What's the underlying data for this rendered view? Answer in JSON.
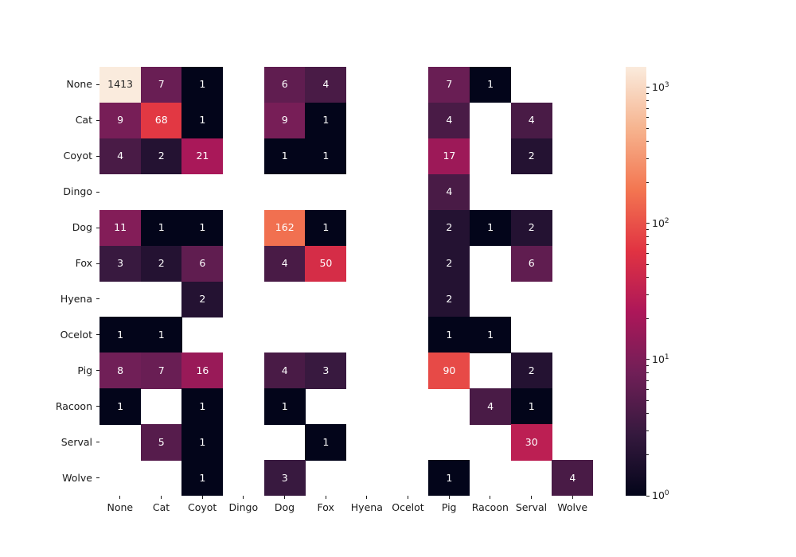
{
  "chart_data": {
    "type": "heatmap",
    "description": "Confusion-matrix style heatmap with log color scale and cell annotations; empty cells are blank (white).",
    "x_categories": [
      "None",
      "Cat",
      "Coyot",
      "Dingo",
      "Dog",
      "Fox",
      "Hyena",
      "Ocelot",
      "Pig",
      "Racoon",
      "Serval",
      "Wolve"
    ],
    "y_categories": [
      "None",
      "Cat",
      "Coyot",
      "Dingo",
      "Dog",
      "Fox",
      "Hyena",
      "Ocelot",
      "Pig",
      "Racoon",
      "Serval",
      "Wolve"
    ],
    "matrix": [
      [
        1413,
        7,
        1,
        null,
        6,
        4,
        null,
        null,
        7,
        1,
        null,
        null
      ],
      [
        9,
        68,
        1,
        null,
        9,
        1,
        null,
        null,
        4,
        null,
        4,
        null
      ],
      [
        4,
        2,
        21,
        null,
        1,
        1,
        null,
        null,
        17,
        null,
        2,
        null
      ],
      [
        null,
        null,
        null,
        null,
        null,
        null,
        null,
        null,
        4,
        null,
        null,
        null
      ],
      [
        11,
        1,
        1,
        null,
        162,
        1,
        null,
        null,
        2,
        1,
        2,
        null
      ],
      [
        3,
        2,
        6,
        null,
        4,
        50,
        null,
        null,
        2,
        null,
        6,
        null
      ],
      [
        null,
        null,
        2,
        null,
        null,
        null,
        null,
        null,
        2,
        null,
        null,
        null
      ],
      [
        1,
        1,
        null,
        null,
        null,
        null,
        null,
        null,
        1,
        1,
        null,
        null
      ],
      [
        8,
        7,
        16,
        null,
        4,
        3,
        null,
        null,
        90,
        null,
        2,
        null
      ],
      [
        1,
        null,
        1,
        null,
        1,
        null,
        null,
        null,
        null,
        4,
        1,
        null
      ],
      [
        null,
        5,
        1,
        null,
        null,
        1,
        null,
        null,
        null,
        null,
        30,
        null
      ],
      [
        null,
        null,
        1,
        null,
        3,
        null,
        null,
        null,
        1,
        null,
        null,
        4
      ]
    ],
    "scale": "log",
    "vmin": 1,
    "vmax": 1413,
    "grid": false,
    "annotations": true,
    "colormap": {
      "name": "rocket",
      "nan_color": "#FFFFFF",
      "anchors": [
        {
          "t": 0.0,
          "hex": "#03051A"
        },
        {
          "t": 0.143,
          "hex": "#35193E"
        },
        {
          "t": 0.286,
          "hex": "#701F57"
        },
        {
          "t": 0.429,
          "hex": "#AD1759"
        },
        {
          "t": 0.571,
          "hex": "#E13342"
        },
        {
          "t": 0.714,
          "hex": "#F37651"
        },
        {
          "t": 0.857,
          "hex": "#F6B48F"
        },
        {
          "t": 1.0,
          "hex": "#FAEBDD"
        }
      ]
    },
    "annotation_text_colors": {
      "light": "#FFFFFF",
      "dark": "#262626",
      "luminance_threshold": 0.408
    },
    "colorbar": {
      "position": "right",
      "major_ticks": [
        {
          "value": 1,
          "base": "10",
          "exp": "0"
        },
        {
          "value": 10,
          "base": "10",
          "exp": "1"
        },
        {
          "value": 100,
          "base": "10",
          "exp": "2"
        },
        {
          "value": 1000,
          "base": "10",
          "exp": "3"
        }
      ]
    }
  }
}
